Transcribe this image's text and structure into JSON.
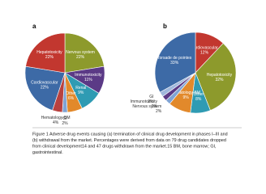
{
  "chart_data": [
    {
      "type": "pie",
      "panel_label": "a",
      "categories": [
        "Nervous system",
        "Immunotoxicity",
        "Renal",
        "Other",
        "GI",
        "Hematology-BM",
        "Cardiovascular",
        "Hepatotoxicity"
      ],
      "values": [
        22,
        11,
        9,
        6,
        2,
        4,
        22,
        22
      ],
      "value_labels": [
        "22%",
        "11%",
        "9%",
        "6%",
        "2%",
        "4%",
        "22%",
        "22%"
      ],
      "colors": [
        "#8d9a2c",
        "#5b3a86",
        "#2f9bb3",
        "#e2892b",
        "#7fa3d4",
        "#b9413f",
        "#3d6aa6",
        "#c2372f"
      ]
    },
    {
      "type": "pie",
      "panel_label": "b",
      "categories": [
        "Cardiovascular",
        "Hepatotoxicity",
        "Other",
        "Hematology-BM",
        "Nervous system",
        "Immunotoxicity",
        "GI",
        "Torsade de pointes"
      ],
      "values": [
        12,
        32,
        8,
        9,
        2,
        2,
        2,
        33
      ],
      "value_labels": [
        "12%",
        "32%",
        "8%",
        "9%",
        "2%",
        "2%",
        "2%",
        "33%"
      ],
      "colors": [
        "#c2372f",
        "#8d9a2c",
        "#2f9bb3",
        "#e2892b",
        "#7fa3d4",
        "#5b3a86",
        "#a0b8dc",
        "#3d6aa6"
      ]
    }
  ],
  "caption": {
    "lines": [
      "Figure 1  Adverse drug events causing (a) termination of clinical drug development in phases I–III and",
      "(b) withdrawal from the market. Percentages were derived from data on 79 drug candidates dropped",
      "from clinical development14 and 47 drugs withdrawn from the market.15 BM, bone marrow; GI,",
      "gastrointestinal."
    ]
  }
}
